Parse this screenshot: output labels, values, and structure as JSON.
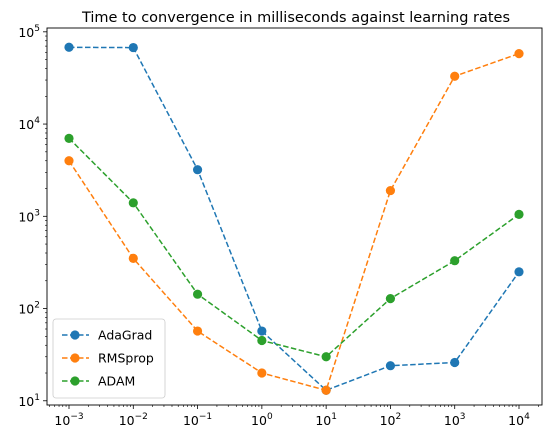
{
  "chart_data": {
    "type": "line",
    "title": "Time to convergence in milliseconds against learning rates",
    "xlabel": "",
    "ylabel": "",
    "xscale": "log",
    "yscale": "log",
    "x": [
      0.001,
      0.01,
      0.1,
      1,
      10,
      100,
      1000,
      10000
    ],
    "x_tick_labels": [
      {
        "base": "10",
        "exp": "−3"
      },
      {
        "base": "10",
        "exp": "−2"
      },
      {
        "base": "10",
        "exp": "−1"
      },
      {
        "base": "10",
        "exp": "0"
      },
      {
        "base": "10",
        "exp": "1"
      },
      {
        "base": "10",
        "exp": "2"
      },
      {
        "base": "10",
        "exp": "3"
      },
      {
        "base": "10",
        "exp": "4"
      }
    ],
    "y_tick_labels": [
      {
        "base": "10",
        "exp": "1"
      },
      {
        "base": "10",
        "exp": "2"
      },
      {
        "base": "10",
        "exp": "3"
      },
      {
        "base": "10",
        "exp": "4"
      },
      {
        "base": "10",
        "exp": "5"
      }
    ],
    "ylim": [
      9,
      110000
    ],
    "grid": false,
    "legend_position": "lower-left",
    "series": [
      {
        "name": "AdaGrad",
        "color": "#1f77b4",
        "linestyle": "dashed",
        "marker": "circle",
        "values": [
          68000,
          67500,
          3200,
          57,
          13,
          24,
          26,
          250
        ]
      },
      {
        "name": "RMSprop",
        "color": "#ff7f0e",
        "linestyle": "dashed",
        "marker": "circle",
        "values": [
          4000,
          350,
          57,
          20,
          13,
          1900,
          33000,
          58000
        ]
      },
      {
        "name": "ADAM",
        "color": "#2ca02c",
        "linestyle": "dashed",
        "marker": "circle",
        "values": [
          7000,
          1400,
          143,
          45,
          30,
          128,
          330,
          1050
        ]
      }
    ]
  }
}
